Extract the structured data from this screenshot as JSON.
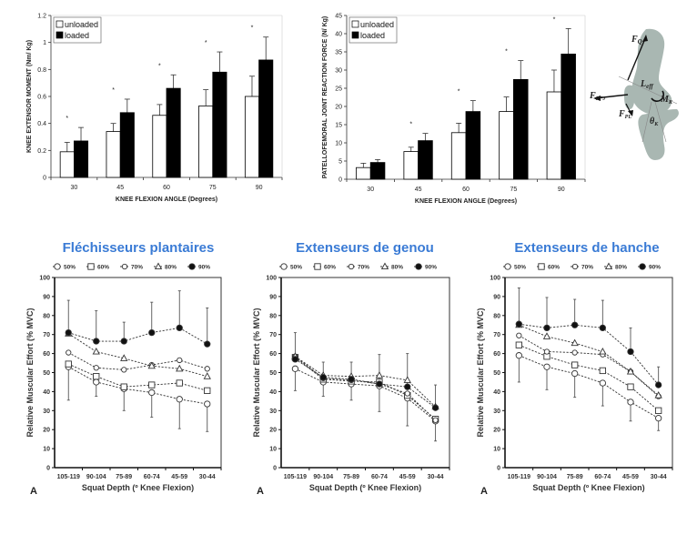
{
  "chart_data": [
    {
      "id": "knee-moment",
      "type": "bar",
      "title": "",
      "xlabel": "KNEE FLEXION ANGLE (Degrees)",
      "ylabel": "KNEE EXTENSOR MOMENT (Nm/ Kg)",
      "categories": [
        "30",
        "45",
        "60",
        "75",
        "90"
      ],
      "ylim": [
        0,
        1.2
      ],
      "yticks": [
        "0",
        "0.2",
        "0.4",
        "0.6",
        "0.8",
        "1",
        "1.2"
      ],
      "ytick_values": [
        0,
        0.2,
        0.4,
        0.6,
        0.8,
        1.0,
        1.2
      ],
      "legend_position": "top-left",
      "series": [
        {
          "name": "unloaded",
          "color": "#ffffff",
          "values": [
            0.19,
            0.34,
            0.46,
            0.53,
            0.6
          ],
          "errors": [
            0.07,
            0.06,
            0.08,
            0.12,
            0.15
          ]
        },
        {
          "name": "loaded",
          "color": "#000000",
          "values": [
            0.27,
            0.48,
            0.66,
            0.78,
            0.87
          ],
          "errors": [
            0.1,
            0.1,
            0.1,
            0.15,
            0.17
          ]
        }
      ],
      "significance_marker": "*",
      "significant": [
        true,
        true,
        true,
        true,
        true
      ]
    },
    {
      "id": "patellofemoral-force",
      "type": "bar",
      "title": "",
      "xlabel": "KNEE FLEXION ANGLE (Degrees)",
      "ylabel": "PATELLOFEMORAL JOINT REACTION FORCE (N/ Kg)",
      "categories": [
        "30",
        "45",
        "60",
        "75",
        "90"
      ],
      "ylim": [
        0,
        45
      ],
      "yticks": [
        "0",
        "5",
        "10",
        "15",
        "20",
        "25",
        "30",
        "35",
        "40",
        "45"
      ],
      "ytick_values": [
        0,
        5,
        10,
        15,
        20,
        25,
        30,
        35,
        40,
        45
      ],
      "legend_position": "top-left",
      "series": [
        {
          "name": "unloaded",
          "color": "#ffffff",
          "values": [
            3.2,
            7.6,
            12.8,
            18.6,
            24.0
          ],
          "errors": [
            1.2,
            1.2,
            2.6,
            4.0,
            6.0
          ]
        },
        {
          "name": "loaded",
          "color": "#000000",
          "values": [
            4.6,
            10.6,
            18.6,
            27.4,
            34.4
          ],
          "errors": [
            0.8,
            2.0,
            3.0,
            5.2,
            7.0
          ]
        }
      ],
      "significance_marker": "*",
      "significant": [
        false,
        true,
        true,
        true,
        true
      ]
    },
    {
      "id": "plantar-flexors",
      "type": "line",
      "title": "Fléchisseurs plantaires",
      "xlabel": "Squat Depth (º Knee Flexion)",
      "ylabel": "Relative Muscular Effort (% MVC)",
      "panel_label": "A",
      "categories": [
        "105-119",
        "90-104",
        "75-89",
        "60-74",
        "45-59",
        "30-44"
      ],
      "ylim": [
        0,
        100
      ],
      "yticks": [
        "0",
        "10",
        "20",
        "30",
        "40",
        "50",
        "60",
        "70",
        "80",
        "90",
        "100"
      ],
      "legend_position": "top",
      "series": [
        {
          "name": "50%",
          "marker": "circle-open",
          "values": [
            53,
            45,
            41.5,
            39.5,
            36,
            33.5
          ],
          "error_low": [
            35.5,
            37.5,
            30,
            26.5,
            20.5,
            19
          ]
        },
        {
          "name": "60%",
          "marker": "square-open",
          "values": [
            54.5,
            48,
            42.5,
            43.5,
            44.5,
            40.5
          ]
        },
        {
          "name": "70%",
          "marker": "diamond-open",
          "values": [
            60.5,
            52.5,
            51.5,
            54,
            56.5,
            52
          ]
        },
        {
          "name": "80%",
          "marker": "triangle-open",
          "values": [
            70.5,
            61,
            57.5,
            53.5,
            52,
            48
          ]
        },
        {
          "name": "90%",
          "marker": "circle-filled",
          "values": [
            71,
            66.5,
            66.5,
            71,
            73.5,
            65
          ],
          "error_high": [
            88,
            82.5,
            76.5,
            87,
            93,
            84
          ]
        }
      ]
    },
    {
      "id": "knee-extensors",
      "type": "line",
      "title": "Extenseurs de genou",
      "xlabel": "Squat Depth (º Knee Flexion)",
      "ylabel": "Relative Muscular Effort (% MVC)",
      "panel_label": "A",
      "categories": [
        "105-119",
        "90-104",
        "75-89",
        "60-74",
        "45-59",
        "30-44"
      ],
      "ylim": [
        0,
        100
      ],
      "yticks": [
        "0",
        "10",
        "20",
        "30",
        "40",
        "50",
        "60",
        "70",
        "80",
        "90",
        "100"
      ],
      "legend_position": "top",
      "series": [
        {
          "name": "50%",
          "marker": "circle-open",
          "values": [
            52,
            45,
            44,
            43,
            36.5,
            24.5
          ],
          "error_low": [
            40.5,
            37.5,
            35.5,
            29.5,
            22,
            14
          ]
        },
        {
          "name": "60%",
          "marker": "square-open",
          "values": [
            58,
            46.5,
            45.5,
            45,
            38,
            25.5
          ]
        },
        {
          "name": "70%",
          "marker": "diamond-open",
          "values": [
            58.5,
            47,
            46,
            44,
            39,
            25
          ]
        },
        {
          "name": "80%",
          "marker": "triangle-open",
          "values": [
            58.5,
            48.5,
            48,
            48.5,
            46,
            32
          ]
        },
        {
          "name": "90%",
          "marker": "circle-filled",
          "values": [
            57,
            47.5,
            46.5,
            44,
            42.5,
            31.5
          ],
          "error_high": [
            71,
            55.5,
            55.5,
            59.5,
            60,
            43.5
          ]
        }
      ]
    },
    {
      "id": "hip-extensors",
      "type": "line",
      "title": "Extenseurs de hanche",
      "xlabel": "Squat Depth (º Knee Flexion)",
      "ylabel": "Relative Muscular Effort (% MVC)",
      "panel_label": "A",
      "categories": [
        "105-119",
        "90-104",
        "75-89",
        "60-74",
        "45-59",
        "30-44"
      ],
      "ylim": [
        0,
        100
      ],
      "yticks": [
        "0",
        "10",
        "20",
        "30",
        "40",
        "50",
        "60",
        "70",
        "80",
        "90",
        "100"
      ],
      "legend_position": "top",
      "series": [
        {
          "name": "50%",
          "marker": "circle-open",
          "values": [
            59,
            53,
            49.5,
            44.5,
            34.5,
            26
          ],
          "error_low": [
            45,
            41,
            37,
            32.5,
            24.5,
            19.5
          ]
        },
        {
          "name": "60%",
          "marker": "square-open",
          "values": [
            64.5,
            58.5,
            54,
            51,
            42.5,
            30
          ]
        },
        {
          "name": "70%",
          "marker": "diamond-open",
          "values": [
            69.5,
            61,
            60.5,
            59.5,
            50.5,
            37.5
          ]
        },
        {
          "name": "80%",
          "marker": "triangle-open",
          "values": [
            75,
            69,
            65.5,
            61,
            50.5,
            38
          ]
        },
        {
          "name": "90%",
          "marker": "circle-filled",
          "values": [
            75.5,
            73.5,
            75,
            73.5,
            61,
            43.5
          ],
          "error_high": [
            94.5,
            89.5,
            88.5,
            88,
            73.5,
            53
          ]
        }
      ]
    }
  ],
  "diagram": {
    "labels": {
      "fq": "F",
      "fq_sub": "Q",
      "fpfj": "F",
      "fpfj_sub": "PFJ",
      "fpl": "F",
      "fpl_sub": "PL",
      "leff": "L",
      "leff_sub": "eff",
      "mk": "M",
      "mk_sub": "K",
      "theta": "θ",
      "theta_sub": "K"
    }
  }
}
